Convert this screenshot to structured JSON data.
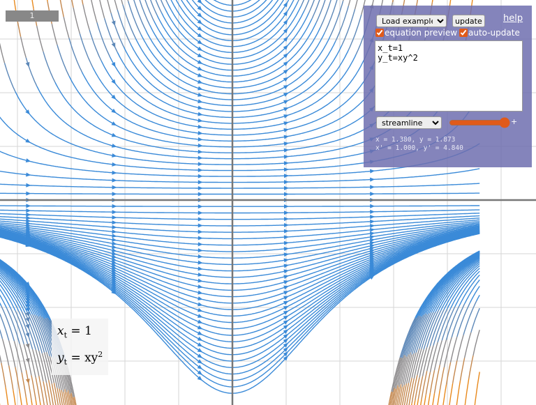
{
  "badge": "1",
  "panel": {
    "example_select": "Load example...",
    "update_button": "update",
    "help_link": "help",
    "equation_preview": {
      "label": "equation preview",
      "checked": true
    },
    "auto_update": {
      "label": "auto-update",
      "checked": true
    },
    "equations": "x_t=1\ny_t=xy^2",
    "mode_select": "streamline",
    "slider_plus": "+",
    "cursor_position": "x = 1.380, y = 1.873",
    "cursor_derivative": "x' = 1.000, y' = 4.840"
  },
  "preview": [
    {
      "lhs": "x",
      "sub": "t",
      "rhs": "= 1"
    },
    {
      "lhs": "y",
      "sub": "t",
      "rhs": "= xy",
      "sup": "2"
    }
  ]
}
